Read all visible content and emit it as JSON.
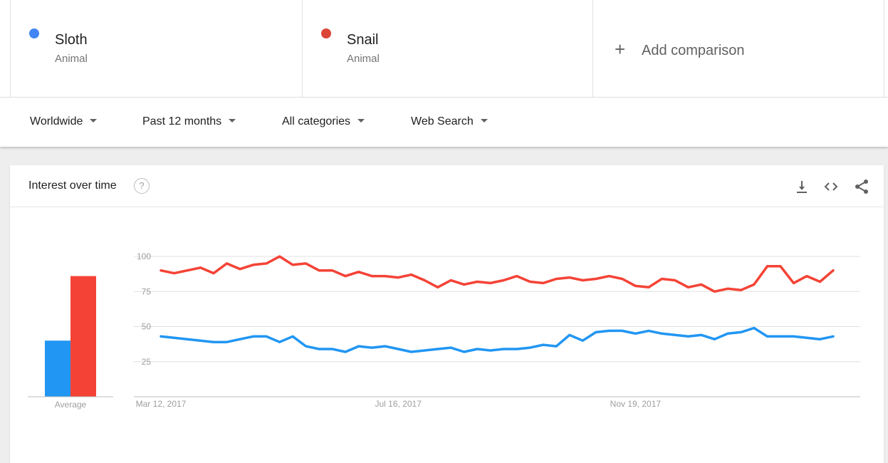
{
  "terms": [
    {
      "name": "Sloth",
      "category": "Animal",
      "color": "#4285f4"
    },
    {
      "name": "Snail",
      "category": "Animal",
      "color": "#db4437"
    }
  ],
  "add_comparison": {
    "label": "Add comparison",
    "icon": "plus-icon"
  },
  "filters": [
    {
      "label": "Worldwide",
      "icon": "dropdown-caret-icon"
    },
    {
      "label": "Past 12 months",
      "icon": "dropdown-caret-icon"
    },
    {
      "label": "All categories",
      "icon": "dropdown-caret-icon"
    },
    {
      "label": "Web Search",
      "icon": "dropdown-caret-icon"
    }
  ],
  "widget": {
    "title": "Interest over time",
    "icons": [
      "help-icon",
      "download-icon",
      "embed-code-icon",
      "share-icon"
    ]
  },
  "chart_data": {
    "type": "line",
    "ylim": [
      0,
      100
    ],
    "yticks": [
      25,
      50,
      75,
      100
    ],
    "grid": true,
    "x_tick_labels": [
      "Mar 12, 2017",
      "Jul 16, 2017",
      "Nov 19, 2017"
    ],
    "x_tick_index": [
      0,
      18,
      36
    ],
    "average_bars": {
      "label": "Average",
      "values": [
        40,
        86
      ],
      "colors": [
        "#2196f3",
        "#f44336"
      ]
    },
    "series": [
      {
        "name": "Sloth",
        "color": "#2196f3",
        "values": [
          43,
          42,
          41,
          40,
          39,
          39,
          41,
          43,
          43,
          39,
          43,
          36,
          34,
          34,
          32,
          36,
          35,
          36,
          34,
          32,
          33,
          34,
          35,
          32,
          34,
          33,
          34,
          34,
          35,
          37,
          36,
          44,
          40,
          46,
          47,
          47,
          45,
          47,
          45,
          44,
          43,
          44,
          41,
          45,
          46,
          49,
          43,
          43,
          43,
          42,
          41,
          43
        ]
      },
      {
        "name": "Snail",
        "color": "#f44336",
        "values": [
          90,
          88,
          90,
          92,
          88,
          95,
          91,
          94,
          95,
          100,
          94,
          95,
          90,
          90,
          86,
          89,
          86,
          86,
          85,
          87,
          83,
          78,
          83,
          80,
          82,
          81,
          83,
          86,
          82,
          81,
          84,
          85,
          83,
          84,
          86,
          84,
          79,
          78,
          84,
          83,
          78,
          80,
          75,
          77,
          76,
          80,
          93,
          93,
          81,
          86,
          82,
          90
        ]
      }
    ]
  }
}
